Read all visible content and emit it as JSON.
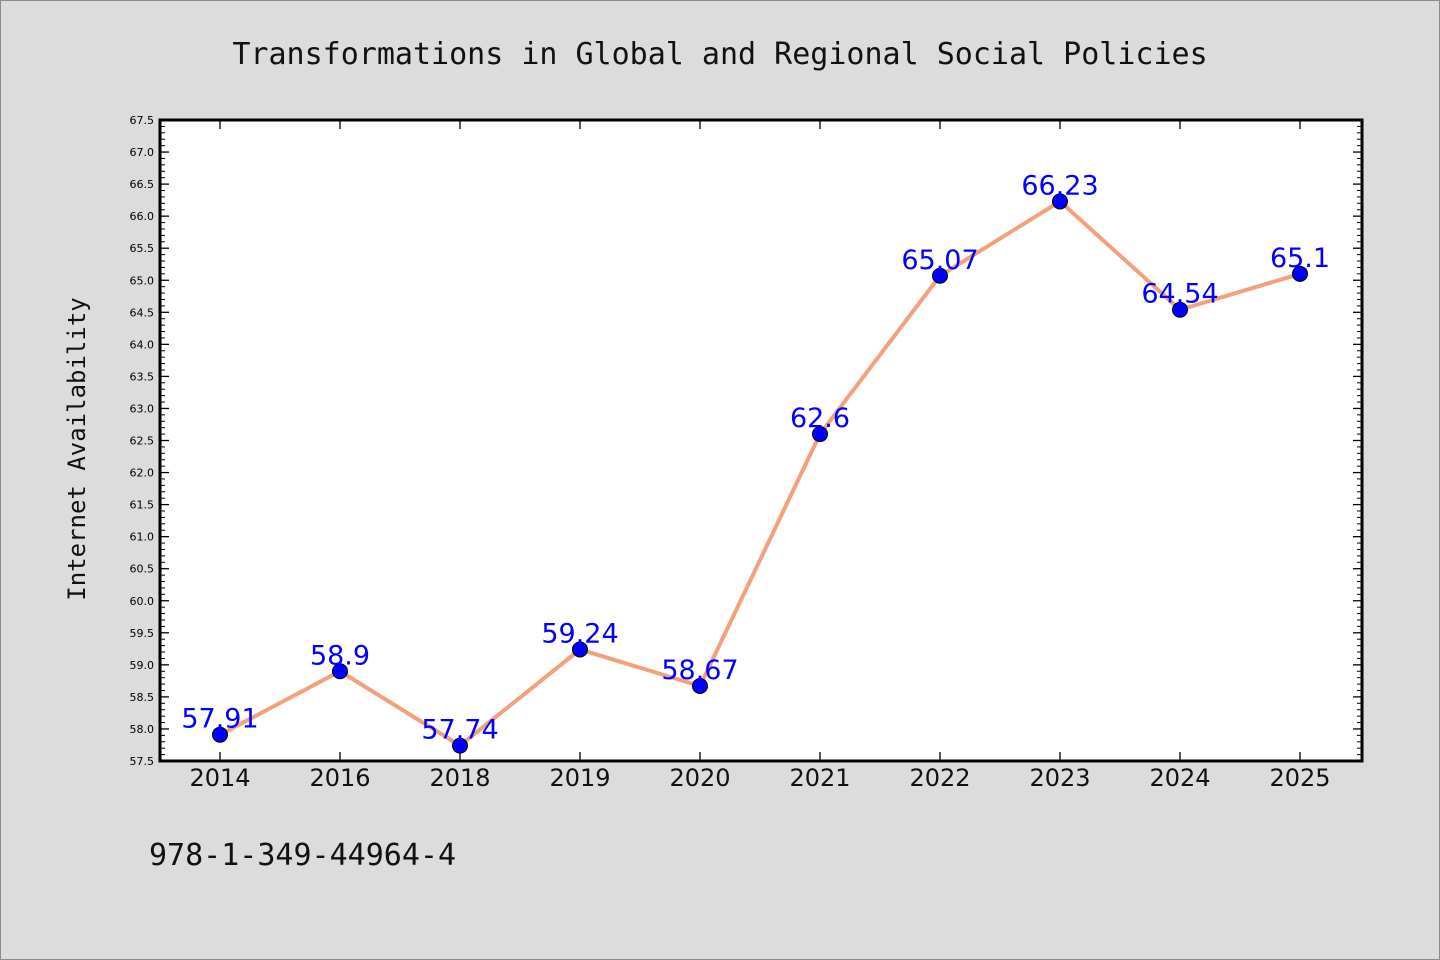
{
  "chart_data": {
    "type": "line",
    "title": "Transformations in Global and Regional Social Policies",
    "xlabel": "",
    "ylabel": "Internet Availability",
    "categories": [
      "2014",
      "2016",
      "2018",
      "2019",
      "2020",
      "2021",
      "2022",
      "2023",
      "2024",
      "2025"
    ],
    "series": [
      {
        "values": [
          57.91,
          58.9,
          57.74,
          59.24,
          58.67,
          62.6,
          65.07,
          66.23,
          64.54,
          65.1
        ],
        "data_labels": [
          "57.91",
          "58.9",
          "57.74",
          "59.24",
          "58.67",
          "62.6",
          "65.07",
          "66.23",
          "64.54",
          "65.1"
        ],
        "line_color": "#f4a07c",
        "marker_color": "#0000ff"
      }
    ],
    "ylim": [
      57.5,
      67.5
    ],
    "y_major_step": 0.5,
    "y_tick_labels": [
      "57.5",
      "58.0",
      "58.5",
      "59.0",
      "59.5",
      "60.0",
      "60.5",
      "61.0",
      "61.5",
      "62.0",
      "62.5",
      "63.0",
      "63.5",
      "64.0",
      "64.5",
      "65.0",
      "65.5",
      "66.0",
      "66.5",
      "67.0",
      "67.5"
    ],
    "grid": false,
    "legend": "none",
    "data_label_color": "#0000ff"
  },
  "footnote": "978-1-349-44964-4"
}
